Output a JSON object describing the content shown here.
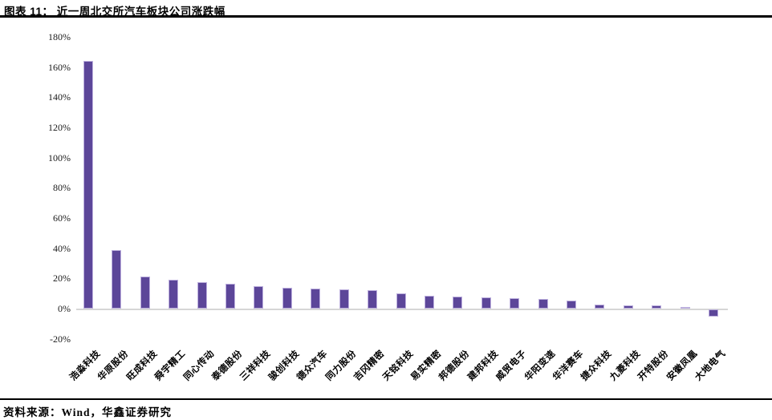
{
  "header": {
    "title": "图表 11： 近一周北交所汽车板块公司涨跌幅"
  },
  "footer": {
    "source": "资料来源：Wind，华鑫证券研究"
  },
  "chart_data": {
    "type": "bar",
    "title": "近一周北交所汽车板块公司涨跌幅",
    "unit": "%",
    "categories": [
      "浩淼科技",
      "华原股份",
      "旺成科技",
      "舜宇精工",
      "同心传动",
      "泰德股份",
      "三祥科技",
      "骏创科技",
      "德众汽车",
      "同力股份",
      "吉冈精密",
      "天铭科技",
      "易实精密",
      "邦德股份",
      "建邦科技",
      "威贸电子",
      "华阳变速",
      "华洋赛车",
      "捷众科技",
      "九菱科技",
      "开特股份",
      "安徽凤凰",
      "大地电气"
    ],
    "values": [
      164,
      39,
      21,
      19,
      17.5,
      16.5,
      15,
      14,
      13.5,
      12.5,
      12,
      10,
      8.5,
      8,
      7.5,
      7,
      6.5,
      5.5,
      2.5,
      2,
      2,
      1,
      -5
    ],
    "xlabel": "",
    "ylabel": "",
    "ylim": [
      -20,
      180
    ],
    "ytick_step": 20,
    "ytick_labels": [
      "180%",
      "160%",
      "140%",
      "120%",
      "100%",
      "80%",
      "60%",
      "40%",
      "20%",
      "0%",
      "-20%"
    ],
    "grid": false,
    "legend": "none",
    "bar_color": "#5c4699",
    "bar_border_color": "#bdb0de",
    "baseline_color": "#d6d6d6"
  }
}
